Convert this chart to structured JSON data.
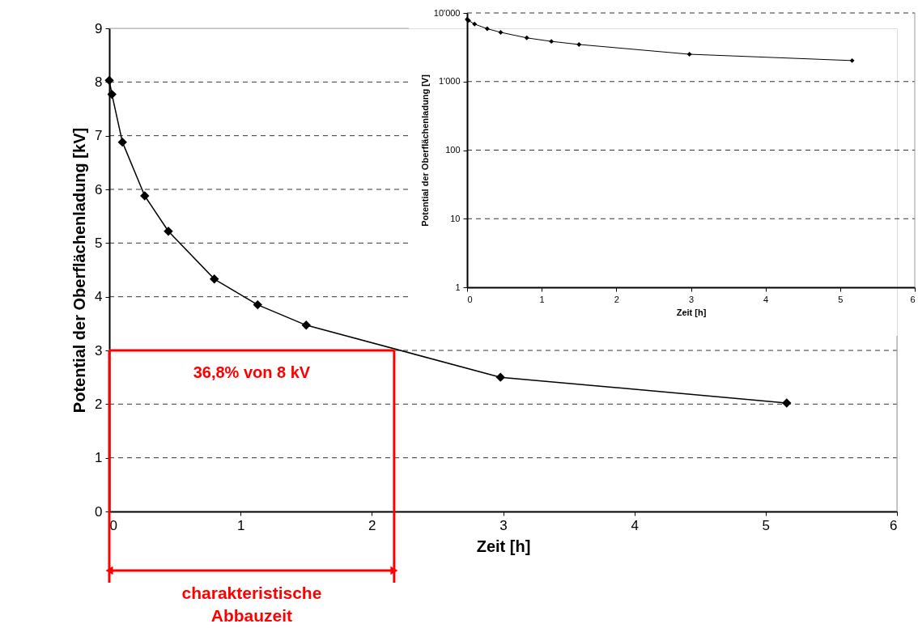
{
  "chart_data": [
    {
      "type": "line",
      "xlabel": "Zeit [h]",
      "ylabel": "Potential der Oberflächenladung [kV]",
      "x": [
        0,
        0.02,
        0.1,
        0.27,
        0.45,
        0.8,
        1.13,
        1.5,
        2.98,
        5.16
      ],
      "series": [
        {
          "color": "#000000",
          "values": [
            8.03,
            7.77,
            6.88,
            5.88,
            5.22,
            4.33,
            3.85,
            3.47,
            2.5,
            2.02
          ]
        }
      ],
      "xlim": [
        0,
        6
      ],
      "xticks": [
        0,
        1,
        2,
        3,
        4,
        5,
        6
      ],
      "ylim": [
        0,
        9
      ],
      "yticks": [
        0,
        1,
        2,
        3,
        4,
        5,
        6,
        7,
        8,
        9
      ],
      "grid": "y",
      "marker": "diamond",
      "line_style": "solid",
      "ref_lines": [
        {
          "axis": "y",
          "value": 3,
          "label": "36,8% von 8 kV",
          "color": "#ff0000"
        },
        {
          "axis": "x",
          "value": 2.17,
          "label": "charakteristische Abbauzeit",
          "color": "#ff0000"
        }
      ]
    },
    {
      "type": "line",
      "xlabel": "Zeit [h]",
      "ylabel": "Potential der Oberflächenladung [V]",
      "x": [
        0,
        0.02,
        0.1,
        0.27,
        0.45,
        0.8,
        1.13,
        1.5,
        2.98,
        5.16
      ],
      "series": [
        {
          "color": "#000000",
          "values": [
            8030,
            7770,
            6880,
            5880,
            5220,
            4330,
            3850,
            3470,
            2500,
            2020
          ]
        }
      ],
      "xlim": [
        0,
        6
      ],
      "xticks": [
        0,
        1,
        2,
        3,
        4,
        5,
        6
      ],
      "ylim": [
        1,
        10000
      ],
      "yticks": [
        1,
        10,
        100,
        {
          "value": 1000,
          "label": "1'000"
        },
        {
          "value": 10000,
          "label": "10'000"
        }
      ],
      "log": true,
      "grid": "y",
      "marker": "diamond",
      "line_style": "solid"
    }
  ]
}
